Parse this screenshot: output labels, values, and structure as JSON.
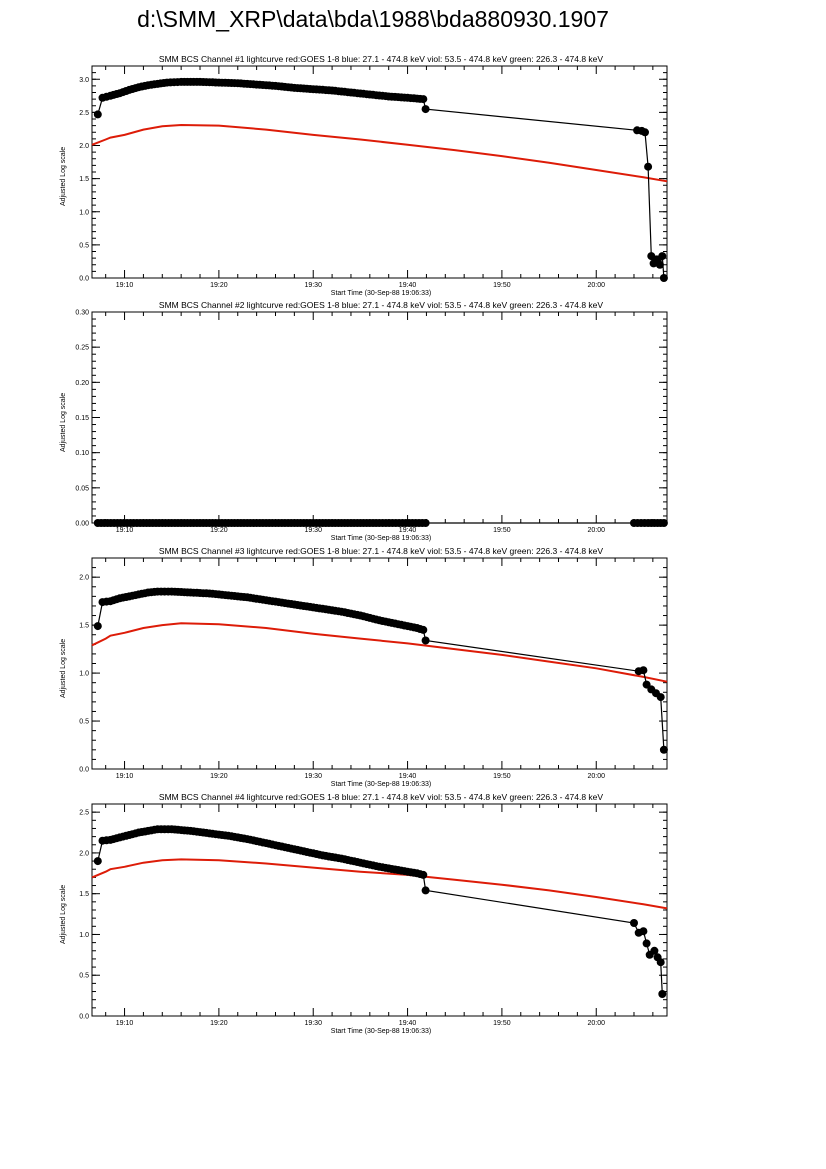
{
  "page": {
    "title": "d:\\SMM_XRP\\data\\bda\\1988\\bda880930.1907"
  },
  "colors": {
    "goes": "#dd1c08",
    "bcs": "#000000",
    "axis": "#000000"
  },
  "chart_data": [
    {
      "type": "line",
      "title": "SMM BCS Channel #1 lightcurve  red:GOES 1-8  blue: 27.1 - 474.8 keV  viol: 53.5 - 474.8 keV  green: 226.3 - 474.8 keV",
      "xlabel": "Start Time (30-Sep-88 19:06:33)",
      "ylabel": "Adjusted Log scale",
      "xlim": [
        "19:06:33",
        "20:07:30"
      ],
      "ylim": [
        0,
        3.2
      ],
      "x_ticks": [
        "19:10",
        "19:20",
        "19:30",
        "19:40",
        "19:50",
        "20:00"
      ],
      "y_ticks": [
        "0.0",
        "0.5",
        "1.0",
        "1.5",
        "2.0",
        "2.5",
        "3.0"
      ],
      "series": [
        {
          "name": "GOES 1-8",
          "color": "red",
          "markers": false,
          "points": [
            [
              "19:06:33",
              2.01
            ],
            [
              "19:08:00",
              2.09
            ],
            [
              "19:08:30",
              2.12
            ],
            [
              "19:10:00",
              2.16
            ],
            [
              "19:12:00",
              2.24
            ],
            [
              "19:14:00",
              2.29
            ],
            [
              "19:16:00",
              2.31
            ],
            [
              "19:20:00",
              2.3
            ],
            [
              "19:25:00",
              2.24
            ],
            [
              "19:30:00",
              2.16
            ],
            [
              "19:35:00",
              2.09
            ],
            [
              "19:40:00",
              2.01
            ],
            [
              "19:45:00",
              1.93
            ],
            [
              "19:50:00",
              1.84
            ],
            [
              "19:55:00",
              1.74
            ],
            [
              "20:00:00",
              1.63
            ],
            [
              "20:05:00",
              1.52
            ],
            [
              "20:07:30",
              1.46
            ]
          ]
        },
        {
          "name": "BCS Channel #1",
          "color": "black",
          "markers": true,
          "points": [
            [
              "19:07:10",
              2.47
            ],
            [
              "19:07:40",
              2.72
            ],
            [
              "19:08:30",
              2.75
            ],
            [
              "19:09:30",
              2.79
            ],
            [
              "19:10:30",
              2.84
            ],
            [
              "19:11:30",
              2.88
            ],
            [
              "19:12:30",
              2.91
            ],
            [
              "19:13:30",
              2.93
            ],
            [
              "19:14:30",
              2.95
            ],
            [
              "19:16:00",
              2.96
            ],
            [
              "19:18:00",
              2.96
            ],
            [
              "19:20:00",
              2.95
            ],
            [
              "19:22:00",
              2.94
            ],
            [
              "19:24:00",
              2.92
            ],
            [
              "19:26:00",
              2.9
            ],
            [
              "19:28:00",
              2.87
            ],
            [
              "19:30:00",
              2.85
            ],
            [
              "19:32:00",
              2.83
            ],
            [
              "19:34:00",
              2.8
            ],
            [
              "19:36:00",
              2.77
            ],
            [
              "19:38:00",
              2.74
            ],
            [
              "19:40:00",
              2.72
            ],
            [
              "19:41:40",
              2.7
            ],
            [
              "19:41:55",
              2.55
            ],
            [
              "20:04:20",
              2.23
            ],
            [
              "20:04:50",
              2.22
            ],
            [
              "20:05:10",
              2.2
            ],
            [
              "20:05:30",
              1.68
            ],
            [
              "20:05:50",
              0.33
            ],
            [
              "20:06:05",
              0.22
            ],
            [
              "20:06:25",
              0.28
            ],
            [
              "20:06:45",
              0.2
            ],
            [
              "20:07:00",
              0.33
            ],
            [
              "20:07:10",
              0.0
            ]
          ]
        }
      ]
    },
    {
      "type": "line",
      "title": "SMM BCS Channel #2 lightcurve  red:GOES 1-8  blue: 27.1 - 474.8 keV  viol: 53.5 - 474.8 keV  green: 226.3 - 474.8 keV",
      "xlabel": "Start Time (30-Sep-88 19:06:33)",
      "ylabel": "Adjusted Log scale",
      "xlim": [
        "19:06:33",
        "20:07:30"
      ],
      "ylim": [
        0,
        0.3
      ],
      "x_ticks": [
        "19:10",
        "19:20",
        "19:30",
        "19:40",
        "19:50",
        "20:00"
      ],
      "y_ticks": [
        "0.00",
        "0.05",
        "0.10",
        "0.15",
        "0.20",
        "0.25",
        "0.30"
      ],
      "series": [
        {
          "name": "BCS Channel #2",
          "color": "black",
          "markers": true,
          "points": [
            [
              "19:07:10",
              0
            ],
            [
              "19:12:00",
              0
            ],
            [
              "19:17:00",
              0
            ],
            [
              "19:22:00",
              0
            ],
            [
              "19:27:00",
              0
            ],
            [
              "19:32:00",
              0
            ],
            [
              "19:37:00",
              0
            ],
            [
              "19:41:55",
              0
            ],
            [
              "20:04:00",
              0
            ],
            [
              "20:05:30",
              0
            ],
            [
              "20:07:10",
              0
            ]
          ]
        }
      ]
    },
    {
      "type": "line",
      "title": "SMM BCS Channel #3 lightcurve  red:GOES 1-8  blue: 27.1 - 474.8 keV  viol: 53.5 - 474.8 keV  green: 226.3 - 474.8 keV",
      "xlabel": "Start Time (30-Sep-88 19:06:33)",
      "ylabel": "Adjusted Log scale",
      "xlim": [
        "19:06:33",
        "20:07:30"
      ],
      "ylim": [
        0,
        2.2
      ],
      "x_ticks": [
        "19:10",
        "19:20",
        "19:30",
        "19:40",
        "19:50",
        "20:00"
      ],
      "y_ticks": [
        "0.0",
        "0.5",
        "1.0",
        "1.5",
        "2.0"
      ],
      "series": [
        {
          "name": "GOES 1-8",
          "color": "red",
          "markers": false,
          "points": [
            [
              "19:06:33",
              1.29
            ],
            [
              "19:08:00",
              1.36
            ],
            [
              "19:08:30",
              1.39
            ],
            [
              "19:10:00",
              1.42
            ],
            [
              "19:12:00",
              1.47
            ],
            [
              "19:14:00",
              1.5
            ],
            [
              "19:16:00",
              1.52
            ],
            [
              "19:20:00",
              1.51
            ],
            [
              "19:25:00",
              1.47
            ],
            [
              "19:30:00",
              1.41
            ],
            [
              "19:35:00",
              1.36
            ],
            [
              "19:40:00",
              1.31
            ],
            [
              "19:45:00",
              1.25
            ],
            [
              "19:50:00",
              1.19
            ],
            [
              "19:55:00",
              1.12
            ],
            [
              "20:00:00",
              1.05
            ],
            [
              "20:05:00",
              0.96
            ],
            [
              "20:07:30",
              0.91
            ]
          ]
        },
        {
          "name": "BCS Channel #3",
          "color": "black",
          "markers": true,
          "points": [
            [
              "19:07:10",
              1.49
            ],
            [
              "19:07:40",
              1.74
            ],
            [
              "19:08:30",
              1.75
            ],
            [
              "19:09:30",
              1.78
            ],
            [
              "19:10:30",
              1.8
            ],
            [
              "19:11:30",
              1.82
            ],
            [
              "19:12:30",
              1.84
            ],
            [
              "19:13:30",
              1.85
            ],
            [
              "19:15:00",
              1.85
            ],
            [
              "19:17:00",
              1.84
            ],
            [
              "19:19:00",
              1.83
            ],
            [
              "19:21:00",
              1.81
            ],
            [
              "19:23:00",
              1.79
            ],
            [
              "19:25:00",
              1.76
            ],
            [
              "19:27:00",
              1.73
            ],
            [
              "19:29:00",
              1.7
            ],
            [
              "19:31:00",
              1.67
            ],
            [
              "19:33:00",
              1.64
            ],
            [
              "19:35:00",
              1.6
            ],
            [
              "19:37:00",
              1.55
            ],
            [
              "19:39:00",
              1.51
            ],
            [
              "19:41:00",
              1.47
            ],
            [
              "19:41:40",
              1.45
            ],
            [
              "19:41:55",
              1.34
            ],
            [
              "20:04:30",
              1.02
            ],
            [
              "20:05:00",
              1.03
            ],
            [
              "20:05:20",
              0.88
            ],
            [
              "20:05:50",
              0.83
            ],
            [
              "20:06:20",
              0.79
            ],
            [
              "20:06:50",
              0.75
            ],
            [
              "20:07:10",
              0.2
            ]
          ]
        }
      ]
    },
    {
      "type": "line",
      "title": "SMM BCS Channel #4 lightcurve  red:GOES 1-8  blue: 27.1 - 474.8 keV  viol: 53.5 - 474.8 keV  green: 226.3 - 474.8 keV",
      "xlabel": "Start Time (30-Sep-88 19:06:33)",
      "ylabel": "Adjusted Log scale",
      "xlim": [
        "19:06:33",
        "20:07:30"
      ],
      "ylim": [
        0,
        2.6
      ],
      "x_ticks": [
        "19:10",
        "19:20",
        "19:30",
        "19:40",
        "19:50",
        "20:00"
      ],
      "y_ticks": [
        "0.0",
        "0.5",
        "1.0",
        "1.5",
        "2.0",
        "2.5"
      ],
      "series": [
        {
          "name": "GOES 1-8",
          "color": "red",
          "markers": false,
          "points": [
            [
              "19:06:33",
              1.7
            ],
            [
              "19:08:00",
              1.77
            ],
            [
              "19:08:30",
              1.8
            ],
            [
              "19:10:00",
              1.83
            ],
            [
              "19:12:00",
              1.88
            ],
            [
              "19:14:00",
              1.91
            ],
            [
              "19:16:00",
              1.92
            ],
            [
              "19:20:00",
              1.91
            ],
            [
              "19:25:00",
              1.87
            ],
            [
              "19:30:00",
              1.82
            ],
            [
              "19:35:00",
              1.77
            ],
            [
              "19:40:00",
              1.73
            ],
            [
              "19:45:00",
              1.67
            ],
            [
              "19:50:00",
              1.61
            ],
            [
              "19:55:00",
              1.54
            ],
            [
              "20:00:00",
              1.46
            ],
            [
              "20:05:00",
              1.37
            ],
            [
              "20:07:30",
              1.32
            ]
          ]
        },
        {
          "name": "BCS Channel #4",
          "color": "black",
          "markers": true,
          "points": [
            [
              "19:07:10",
              1.9
            ],
            [
              "19:07:40",
              2.15
            ],
            [
              "19:08:30",
              2.16
            ],
            [
              "19:09:30",
              2.19
            ],
            [
              "19:10:30",
              2.22
            ],
            [
              "19:11:30",
              2.25
            ],
            [
              "19:12:30",
              2.27
            ],
            [
              "19:13:30",
              2.29
            ],
            [
              "19:15:00",
              2.29
            ],
            [
              "19:17:00",
              2.27
            ],
            [
              "19:19:00",
              2.24
            ],
            [
              "19:21:00",
              2.21
            ],
            [
              "19:23:00",
              2.17
            ],
            [
              "19:25:00",
              2.12
            ],
            [
              "19:27:00",
              2.07
            ],
            [
              "19:29:00",
              2.02
            ],
            [
              "19:31:00",
              1.97
            ],
            [
              "19:33:00",
              1.93
            ],
            [
              "19:35:00",
              1.88
            ],
            [
              "19:37:00",
              1.83
            ],
            [
              "19:39:00",
              1.79
            ],
            [
              "19:41:00",
              1.75
            ],
            [
              "19:41:40",
              1.73
            ],
            [
              "19:41:55",
              1.54
            ],
            [
              "20:04:00",
              1.14
            ],
            [
              "20:04:30",
              1.02
            ],
            [
              "20:05:00",
              1.04
            ],
            [
              "20:05:20",
              0.89
            ],
            [
              "20:05:40",
              0.75
            ],
            [
              "20:06:10",
              0.8
            ],
            [
              "20:06:30",
              0.72
            ],
            [
              "20:06:50",
              0.66
            ],
            [
              "20:07:00",
              0.27
            ]
          ]
        }
      ]
    }
  ]
}
